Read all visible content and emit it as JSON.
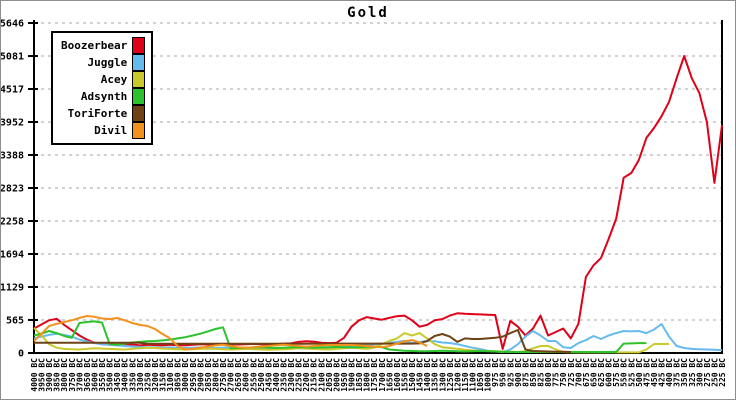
{
  "title": "Gold",
  "legend": [
    {
      "label": "Boozerbear",
      "color": "#e00019"
    },
    {
      "label": "Juggle",
      "color": "#66bbee"
    },
    {
      "label": "Acey",
      "color": "#c9c92c"
    },
    {
      "label": "Adsynth",
      "color": "#2cc22c"
    },
    {
      "label": "ToriForte",
      "color": "#6f4216"
    },
    {
      "label": "Divil",
      "color": "#f2921d"
    }
  ],
  "colors": {
    "axis": "#000000",
    "gridline": "#c4c4c4",
    "background": "#ffffff",
    "frame": "#8e8e8e"
  },
  "chart_data": {
    "type": "line",
    "title": "Gold",
    "ylabel": "",
    "xlabel": "",
    "ylim": [
      0,
      5646
    ],
    "y_ticks": [
      0,
      565,
      1129,
      1694,
      2258,
      2823,
      3388,
      3952,
      4517,
      5081,
      5646
    ],
    "grid": "horizontal-dashed",
    "legend_position": "top-left",
    "x_categories": [
      "4000 BC",
      "3950 BC",
      "3900 BC",
      "3850 BC",
      "3800 BC",
      "3750 BC",
      "3700 BC",
      "3650 BC",
      "3600 BC",
      "3550 BC",
      "3500 BC",
      "3450 BC",
      "3400 BC",
      "3350 BC",
      "3300 BC",
      "3250 BC",
      "3200 BC",
      "3150 BC",
      "3100 BC",
      "3050 BC",
      "3000 BC",
      "2950 BC",
      "2900 BC",
      "2850 BC",
      "2800 BC",
      "2750 BC",
      "2700 BC",
      "2650 BC",
      "2600 BC",
      "2550 BC",
      "2500 BC",
      "2450 BC",
      "2400 BC",
      "2350 BC",
      "2300 BC",
      "2250 BC",
      "2200 BC",
      "2150 BC",
      "2100 BC",
      "2050 BC",
      "2000 BC",
      "1950 BC",
      "1900 BC",
      "1850 BC",
      "1800 BC",
      "1750 BC",
      "1700 BC",
      "1650 BC",
      "1600 BC",
      "1550 BC",
      "1500 BC",
      "1450 BC",
      "1400 BC",
      "1350 BC",
      "1300 BC",
      "1250 BC",
      "1200 BC",
      "1150 BC",
      "1100 BC",
      "1050 BC",
      "1000 BC",
      "975 BC",
      "950 BC",
      "925 BC",
      "900 BC",
      "875 BC",
      "850 BC",
      "825 BC",
      "800 BC",
      "775 BC",
      "750 BC",
      "725 BC",
      "700 BC",
      "675 BC",
      "650 BC",
      "625 BC",
      "600 BC",
      "575 BC",
      "550 BC",
      "525 BC",
      "500 BC",
      "475 BC",
      "450 BC",
      "425 BC",
      "400 BC",
      "375 BC",
      "350 BC",
      "325 BC",
      "300 BC",
      "275 BC",
      "250 BC",
      "225 BC"
    ],
    "series": [
      {
        "name": "Boozerbear",
        "color": "#e00019",
        "values": [
          420,
          490,
          560,
          585,
          480,
          390,
          300,
          230,
          175,
          150,
          140,
          135,
          150,
          145,
          130,
          140,
          135,
          130,
          140,
          135,
          130,
          140,
          150,
          145,
          150,
          155,
          150,
          145,
          150,
          155,
          150,
          145,
          150,
          160,
          165,
          190,
          200,
          195,
          175,
          170,
          175,
          260,
          450,
          560,
          615,
          590,
          570,
          600,
          630,
          640,
          560,
          450,
          480,
          560,
          580,
          640,
          680,
          670,
          665,
          660,
          655,
          650,
          70,
          550,
          450,
          300,
          420,
          640,
          300,
          360,
          420,
          250,
          500,
          1300,
          1500,
          1625,
          1950,
          2300,
          3000,
          3080,
          3300,
          3680,
          3850,
          4050,
          4300,
          4700,
          5081,
          4700,
          4450,
          3950,
          2910,
          3900
        ]
      },
      {
        "name": "Juggle",
        "color": "#66bbee",
        "values": [
          250,
          280,
          310,
          330,
          310,
          280,
          230,
          200,
          170,
          150,
          140,
          130,
          120,
          110,
          105,
          100,
          95,
          90,
          95,
          90,
          85,
          90,
          95,
          90,
          85,
          90,
          95,
          85,
          80,
          85,
          90,
          85,
          80,
          85,
          90,
          95,
          90,
          85,
          90,
          95,
          100,
          110,
          120,
          130,
          140,
          150,
          160,
          171,
          190,
          205,
          171,
          190,
          205,
          200,
          180,
          171,
          150,
          120,
          90,
          68,
          40,
          25,
          17,
          60,
          150,
          280,
          376,
          300,
          205,
          205,
          100,
          86,
          170,
          220,
          291,
          240,
          300,
          340,
          376,
          370,
          376,
          340,
          400,
          496,
          280,
          120,
          86,
          70,
          65,
          60,
          55,
          50
        ]
      },
      {
        "name": "Acey",
        "color": "#c9c92c",
        "values": [
          430,
          300,
          150,
          90,
          70,
          65,
          60,
          70,
          80,
          75,
          70,
          65,
          60,
          70,
          80,
          90,
          85,
          75,
          70,
          65,
          60,
          65,
          70,
          75,
          70,
          65,
          60,
          65,
          70,
          65,
          60,
          55,
          60,
          65,
          70,
          80,
          75,
          70,
          65,
          60,
          70,
          80,
          90,
          80,
          70,
          90,
          150,
          205,
          250,
          340,
          300,
          340,
          250,
          150,
          100,
          85,
          70,
          55,
          45,
          40,
          35,
          30,
          25,
          20,
          17,
          30,
          80,
          120,
          120,
          60,
          15,
          12,
          10,
          10,
          10,
          10,
          10,
          10,
          10,
          10,
          10,
          60,
          154,
          154,
          154,
          null,
          null,
          null,
          null,
          null,
          null,
          null
        ]
      },
      {
        "name": "Adsynth",
        "color": "#2cc22c",
        "values": [
          300,
          330,
          376,
          340,
          290,
          260,
          513,
          530,
          540,
          520,
          154,
          140,
          160,
          180,
          190,
          200,
          205,
          215,
          230,
          250,
          270,
          300,
          330,
          370,
          410,
          440,
          80,
          85,
          90,
          95,
          100,
          90,
          85,
          90,
          95,
          100,
          95,
          90,
          95,
          100,
          105,
          100,
          95,
          100,
          105,
          110,
          100,
          60,
          50,
          40,
          35,
          30,
          30,
          35,
          40,
          35,
          30,
          25,
          30,
          35,
          30,
          25,
          20,
          17,
          17,
          17,
          17,
          17,
          17,
          17,
          17,
          17,
          17,
          17,
          17,
          17,
          17,
          17,
          160,
          165,
          170,
          170,
          null,
          null,
          null,
          null,
          null,
          null,
          null,
          null,
          null,
          null
        ]
      },
      {
        "name": "ToriForte",
        "color": "#6f4216",
        "values": [
          176,
          176,
          176,
          176,
          176,
          176,
          176,
          176,
          176,
          176,
          176,
          176,
          176,
          176,
          176,
          158,
          158,
          158,
          158,
          158,
          158,
          158,
          158,
          158,
          158,
          158,
          158,
          158,
          158,
          158,
          158,
          158,
          158,
          158,
          158,
          158,
          158,
          160,
          160,
          160,
          160,
          160,
          160,
          160,
          160,
          160,
          160,
          160,
          160,
          160,
          160,
          165,
          205,
          290,
          325,
          280,
          190,
          250,
          240,
          240,
          250,
          260,
          280,
          340,
          393,
          60,
          34,
          30,
          25,
          20,
          20,
          17,
          null,
          null,
          null,
          null,
          null,
          null,
          null,
          null,
          null,
          null,
          null,
          null,
          null,
          null,
          null,
          null,
          null,
          null,
          null,
          null
        ]
      },
      {
        "name": "Divil",
        "color": "#f2921d",
        "values": [
          205,
          330,
          462,
          500,
          530,
          560,
          600,
          633,
          620,
          590,
          580,
          599,
          560,
          513,
          480,
          462,
          410,
          325,
          250,
          120,
          60,
          70,
          90,
          110,
          130,
          140,
          120,
          100,
          90,
          100,
          110,
          120,
          130,
          140,
          130,
          120,
          110,
          120,
          130,
          137,
          137,
          137,
          137,
          130,
          120,
          110,
          100,
          120,
          160,
          200,
          222,
          180,
          120,
          null,
          null,
          null,
          null,
          null,
          null,
          null,
          null,
          null,
          null,
          null,
          null,
          null,
          null,
          null,
          null,
          null,
          null,
          null,
          null,
          null,
          null,
          null,
          null,
          null,
          null,
          null,
          null,
          null,
          null,
          null,
          null,
          null,
          null,
          null,
          null,
          null,
          null,
          null,
          null
        ]
      }
    ]
  }
}
